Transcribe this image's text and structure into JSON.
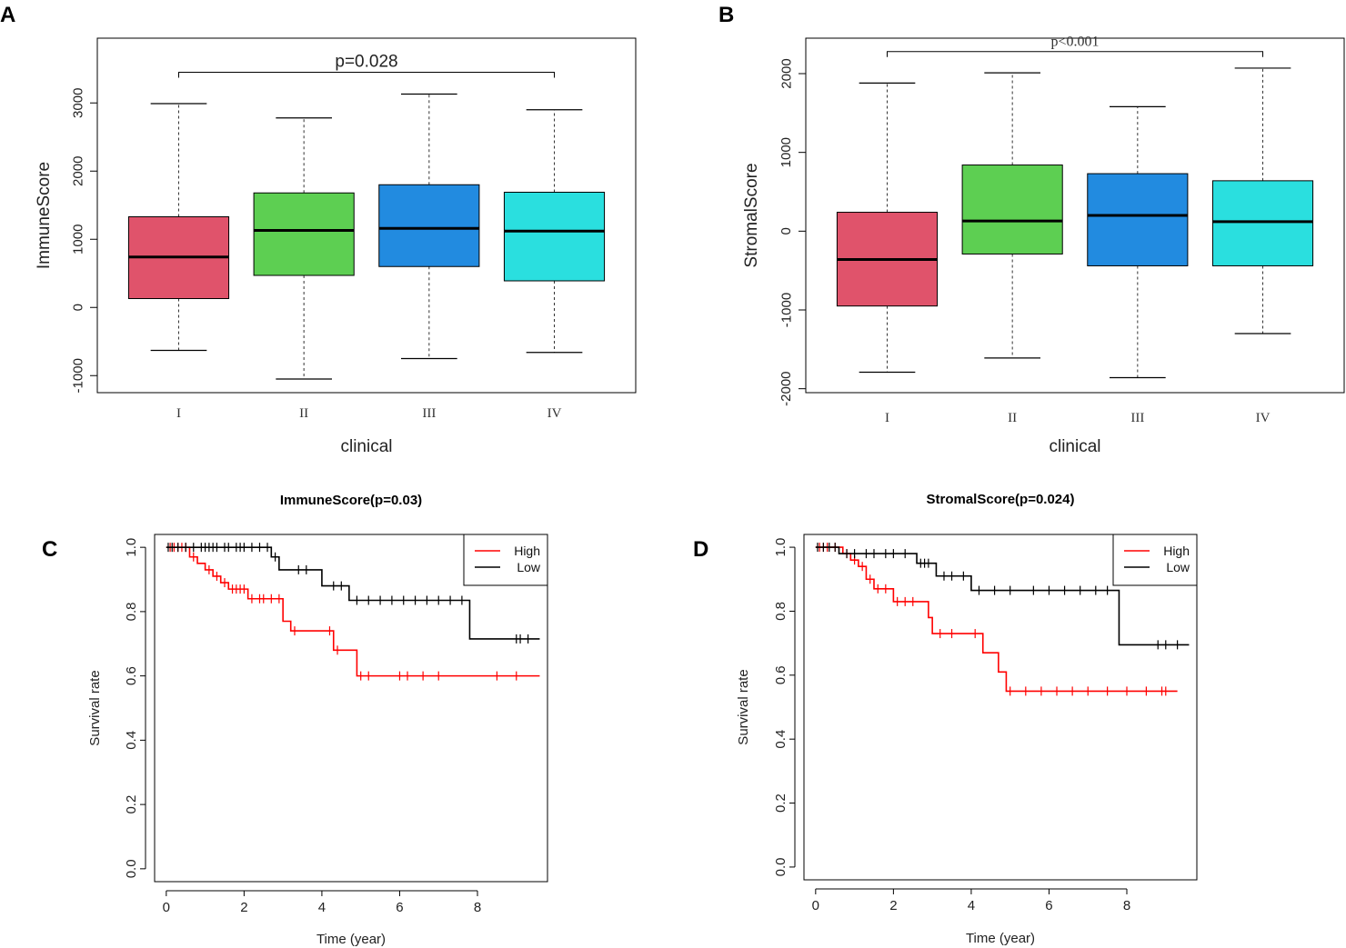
{
  "panels": {
    "a": {
      "letter": "A"
    },
    "b": {
      "letter": "B"
    },
    "c": {
      "letter": "C"
    },
    "d": {
      "letter": "D"
    }
  },
  "chart_data": [
    {
      "id": "A",
      "type": "box",
      "title": "",
      "xlabel": "clinical",
      "ylabel": "ImmuneScore",
      "ylim": [
        -1250,
        3950
      ],
      "yticks": [
        -1000,
        0,
        1000,
        2000,
        3000
      ],
      "ytick_labels": [
        "-1000",
        "0",
        "1000",
        "2000",
        "3000"
      ],
      "categories": [
        "I",
        "II",
        "III",
        "IV"
      ],
      "boxes": [
        {
          "group": "I",
          "min": -630,
          "q1": 130,
          "median": 740,
          "q3": 1330,
          "max": 2990,
          "color": "#E0536B"
        },
        {
          "group": "II",
          "min": -1050,
          "q1": 470,
          "median": 1130,
          "q3": 1680,
          "max": 2780,
          "color": "#5DCF52"
        },
        {
          "group": "III",
          "min": -750,
          "q1": 600,
          "median": 1160,
          "q3": 1800,
          "max": 3130,
          "color": "#228BE0"
        },
        {
          "group": "IV",
          "min": -660,
          "q1": 390,
          "median": 1120,
          "q3": 1690,
          "max": 2900,
          "color": "#2ADFDF"
        }
      ],
      "annotation": {
        "text": "p=0.028",
        "from_group": "I",
        "to_group": "IV",
        "y": 3450
      }
    },
    {
      "id": "B",
      "type": "box",
      "title": "",
      "xlabel": "clinical",
      "ylabel": "StromalScore",
      "ylim": [
        -2050,
        2450
      ],
      "yticks": [
        -2000,
        -1000,
        0,
        1000,
        2000
      ],
      "ytick_labels": [
        "-2000",
        "-1000",
        "0",
        "1000",
        "2000"
      ],
      "categories": [
        "I",
        "II",
        "III",
        "IV"
      ],
      "boxes": [
        {
          "group": "I",
          "min": -1790,
          "q1": -950,
          "median": -360,
          "q3": 240,
          "max": 1880,
          "color": "#E0536B"
        },
        {
          "group": "II",
          "min": -1610,
          "q1": -290,
          "median": 130,
          "q3": 840,
          "max": 2010,
          "color": "#5DCF52"
        },
        {
          "group": "III",
          "min": -1860,
          "q1": -440,
          "median": 200,
          "q3": 730,
          "max": 1580,
          "color": "#228BE0"
        },
        {
          "group": "IV",
          "min": -1300,
          "q1": -440,
          "median": 120,
          "q3": 640,
          "max": 2070,
          "color": "#2ADFDF"
        }
      ],
      "annotation": {
        "text": "p<0.001",
        "from_group": "I",
        "to_group": "IV",
        "y": 2280
      }
    },
    {
      "id": "C",
      "type": "line",
      "subtype": "kaplan-meier",
      "title": "ImmuneScore(p=0.03)",
      "xlabel": "Time (year)",
      "ylabel": "Survival rate",
      "xlim": [
        -0.3,
        9.8
      ],
      "ylim": [
        -0.04,
        1.04
      ],
      "xticks": [
        0,
        2,
        4,
        6,
        8
      ],
      "yticks": [
        0.0,
        0.2,
        0.4,
        0.6,
        0.8,
        1.0
      ],
      "ytick_labels": [
        "0.0",
        "0.2",
        "0.4",
        "0.6",
        "0.8",
        "1.0"
      ],
      "legend": {
        "position": "top-right",
        "entries": [
          {
            "label": "High",
            "color": "#FF0000"
          },
          {
            "label": "Low",
            "color": "#000000"
          }
        ]
      },
      "series": [
        {
          "name": "High",
          "color": "#FF0000",
          "steps": [
            [
              0,
              1.0
            ],
            [
              0.6,
              0.97
            ],
            [
              0.8,
              0.95
            ],
            [
              1.0,
              0.93
            ],
            [
              1.2,
              0.91
            ],
            [
              1.4,
              0.89
            ],
            [
              1.6,
              0.87
            ],
            [
              2.1,
              0.84
            ],
            [
              3.0,
              0.77
            ],
            [
              3.2,
              0.74
            ],
            [
              4.3,
              0.68
            ],
            [
              4.9,
              0.6
            ],
            [
              9.6,
              0.6
            ]
          ],
          "censor": [
            [
              0.1,
              1.0
            ],
            [
              0.2,
              1.0
            ],
            [
              0.3,
              1.0
            ],
            [
              0.4,
              1.0
            ],
            [
              0.5,
              1.0
            ],
            [
              0.7,
              0.97
            ],
            [
              1.1,
              0.93
            ],
            [
              1.3,
              0.91
            ],
            [
              1.5,
              0.89
            ],
            [
              1.7,
              0.87
            ],
            [
              1.8,
              0.87
            ],
            [
              1.9,
              0.87
            ],
            [
              2.0,
              0.87
            ],
            [
              2.2,
              0.84
            ],
            [
              2.4,
              0.84
            ],
            [
              2.5,
              0.84
            ],
            [
              2.7,
              0.84
            ],
            [
              2.9,
              0.84
            ],
            [
              3.3,
              0.74
            ],
            [
              4.2,
              0.74
            ],
            [
              4.4,
              0.68
            ],
            [
              5.0,
              0.6
            ],
            [
              5.2,
              0.6
            ],
            [
              6.0,
              0.6
            ],
            [
              6.2,
              0.6
            ],
            [
              6.6,
              0.6
            ],
            [
              7.0,
              0.6
            ],
            [
              8.5,
              0.6
            ],
            [
              9.0,
              0.6
            ]
          ]
        },
        {
          "name": "Low",
          "color": "#000000",
          "steps": [
            [
              0,
              1.0
            ],
            [
              2.7,
              0.97
            ],
            [
              2.9,
              0.93
            ],
            [
              4.0,
              0.88
            ],
            [
              4.7,
              0.835
            ],
            [
              7.8,
              0.715
            ],
            [
              9.6,
              0.715
            ]
          ],
          "censor": [
            [
              0.05,
              1.0
            ],
            [
              0.15,
              1.0
            ],
            [
              0.3,
              1.0
            ],
            [
              0.5,
              1.0
            ],
            [
              0.7,
              1.0
            ],
            [
              0.9,
              1.0
            ],
            [
              1.0,
              1.0
            ],
            [
              1.1,
              1.0
            ],
            [
              1.2,
              1.0
            ],
            [
              1.3,
              1.0
            ],
            [
              1.5,
              1.0
            ],
            [
              1.6,
              1.0
            ],
            [
              1.8,
              1.0
            ],
            [
              1.9,
              1.0
            ],
            [
              2.0,
              1.0
            ],
            [
              2.2,
              1.0
            ],
            [
              2.4,
              1.0
            ],
            [
              2.6,
              1.0
            ],
            [
              2.8,
              0.97
            ],
            [
              3.4,
              0.93
            ],
            [
              3.6,
              0.93
            ],
            [
              4.3,
              0.88
            ],
            [
              4.5,
              0.88
            ],
            [
              4.9,
              0.835
            ],
            [
              5.2,
              0.835
            ],
            [
              5.5,
              0.835
            ],
            [
              5.8,
              0.835
            ],
            [
              6.1,
              0.835
            ],
            [
              6.4,
              0.835
            ],
            [
              6.7,
              0.835
            ],
            [
              7.0,
              0.835
            ],
            [
              7.3,
              0.835
            ],
            [
              7.6,
              0.835
            ],
            [
              9.0,
              0.715
            ],
            [
              9.1,
              0.715
            ],
            [
              9.3,
              0.715
            ]
          ]
        }
      ]
    },
    {
      "id": "D",
      "type": "line",
      "subtype": "kaplan-meier",
      "title": "StromalScore(p=0.024)",
      "xlabel": "Time (year)",
      "ylabel": "Survival rate",
      "xlim": [
        -0.3,
        9.8
      ],
      "ylim": [
        -0.04,
        1.04
      ],
      "xticks": [
        0,
        2,
        4,
        6,
        8
      ],
      "yticks": [
        0.0,
        0.2,
        0.4,
        0.6,
        0.8,
        1.0
      ],
      "ytick_labels": [
        "0.0",
        "0.2",
        "0.4",
        "0.6",
        "0.8",
        "1.0"
      ],
      "legend": {
        "position": "top-right",
        "entries": [
          {
            "label": "High",
            "color": "#FF0000"
          },
          {
            "label": "Low",
            "color": "#000000"
          }
        ]
      },
      "series": [
        {
          "name": "High",
          "color": "#FF0000",
          "steps": [
            [
              0,
              1.0
            ],
            [
              0.7,
              0.98
            ],
            [
              0.9,
              0.96
            ],
            [
              1.1,
              0.94
            ],
            [
              1.3,
              0.9
            ],
            [
              1.5,
              0.87
            ],
            [
              2.0,
              0.83
            ],
            [
              2.9,
              0.78
            ],
            [
              3.0,
              0.73
            ],
            [
              4.3,
              0.67
            ],
            [
              4.7,
              0.61
            ],
            [
              4.9,
              0.55
            ],
            [
              9.3,
              0.55
            ]
          ],
          "censor": [
            [
              0.1,
              1.0
            ],
            [
              0.2,
              1.0
            ],
            [
              0.3,
              1.0
            ],
            [
              0.5,
              1.0
            ],
            [
              0.8,
              0.98
            ],
            [
              1.0,
              0.96
            ],
            [
              1.2,
              0.94
            ],
            [
              1.4,
              0.9
            ],
            [
              1.6,
              0.87
            ],
            [
              1.8,
              0.87
            ],
            [
              2.1,
              0.83
            ],
            [
              2.3,
              0.83
            ],
            [
              2.5,
              0.83
            ],
            [
              3.2,
              0.73
            ],
            [
              3.5,
              0.73
            ],
            [
              4.1,
              0.73
            ],
            [
              5.0,
              0.55
            ],
            [
              5.4,
              0.55
            ],
            [
              5.8,
              0.55
            ],
            [
              6.2,
              0.55
            ],
            [
              6.6,
              0.55
            ],
            [
              7.0,
              0.55
            ],
            [
              7.5,
              0.55
            ],
            [
              8.0,
              0.55
            ],
            [
              8.5,
              0.55
            ],
            [
              8.9,
              0.55
            ],
            [
              9.0,
              0.55
            ]
          ]
        },
        {
          "name": "Low",
          "color": "#000000",
          "steps": [
            [
              0,
              1.0
            ],
            [
              0.6,
              0.98
            ],
            [
              2.6,
              0.95
            ],
            [
              3.1,
              0.91
            ],
            [
              4.0,
              0.865
            ],
            [
              7.8,
              0.695
            ],
            [
              9.6,
              0.695
            ]
          ],
          "censor": [
            [
              0.05,
              1.0
            ],
            [
              0.2,
              1.0
            ],
            [
              0.35,
              1.0
            ],
            [
              0.5,
              1.0
            ],
            [
              0.8,
              0.98
            ],
            [
              1.0,
              0.98
            ],
            [
              1.3,
              0.98
            ],
            [
              1.5,
              0.98
            ],
            [
              1.8,
              0.98
            ],
            [
              2.0,
              0.98
            ],
            [
              2.3,
              0.98
            ],
            [
              2.7,
              0.95
            ],
            [
              2.8,
              0.95
            ],
            [
              2.9,
              0.95
            ],
            [
              3.3,
              0.91
            ],
            [
              3.5,
              0.91
            ],
            [
              3.8,
              0.91
            ],
            [
              4.2,
              0.865
            ],
            [
              4.6,
              0.865
            ],
            [
              5.0,
              0.865
            ],
            [
              5.6,
              0.865
            ],
            [
              6.0,
              0.865
            ],
            [
              6.4,
              0.865
            ],
            [
              6.8,
              0.865
            ],
            [
              7.2,
              0.865
            ],
            [
              7.5,
              0.865
            ],
            [
              8.8,
              0.695
            ],
            [
              9.0,
              0.695
            ],
            [
              9.3,
              0.695
            ]
          ]
        }
      ]
    }
  ]
}
